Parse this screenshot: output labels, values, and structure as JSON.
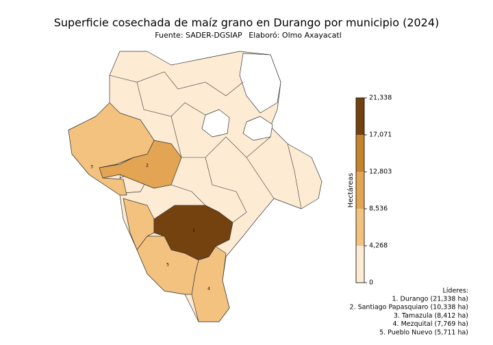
{
  "chart_data": {
    "type": "choropleth",
    "title": "Superficie cosechada de maíz grano en Durango por municipio (2024)",
    "source": "Fuente: SADER-DGSIAP",
    "credit": "Elaboró: Olmo Axayacatl",
    "colorbar": {
      "label": "Hectáreas",
      "lim": [
        0,
        21338
      ],
      "ticks": [
        0,
        {
          "value": 4268,
          "label": "4,268"
        },
        {
          "value": 8536,
          "label": "8,536"
        },
        {
          "value": 12803,
          "label": "12,803"
        },
        {
          "value": 17071,
          "label": "17,071"
        },
        {
          "value": 21338,
          "label": "21,338"
        }
      ],
      "colors": [
        "#fdebd3",
        "#f3c27f",
        "#e3a453",
        "#c5832c",
        "#74420f"
      ]
    },
    "leaders": {
      "title": "Líderes:",
      "items": [
        {
          "rank": "1",
          "label": "1. Durango (21,338 ha)",
          "value": 21338
        },
        {
          "rank": "2",
          "label": "2. Santiago Papasquiaro (10,338 ha)",
          "value": 10338
        },
        {
          "rank": "3",
          "label": "3. Tamazula (8,412 ha)",
          "value": 8412
        },
        {
          "rank": "4",
          "label": "4. Mezquital (7,769 ha)",
          "value": 7769
        },
        {
          "rank": "5",
          "label": "5. Pueblo Nuevo (5,711 ha)",
          "value": 5711
        }
      ]
    }
  }
}
